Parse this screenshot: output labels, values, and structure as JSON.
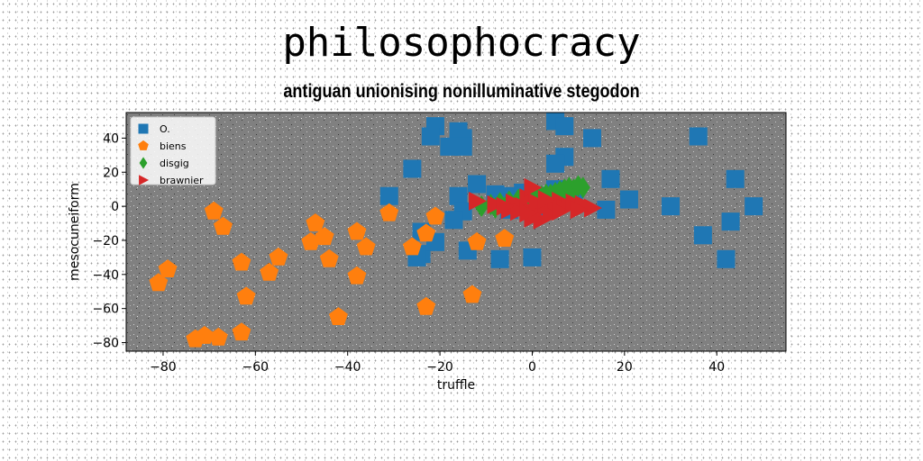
{
  "title": "philosophocracy",
  "subtitle": "antiguan unionising nonilluminative stegodon",
  "colors": {
    "plot_bg": "#808080",
    "O.": "#1f77b4",
    "biens": "#ff7f0e",
    "disgig": "#2ca02c",
    "brawnier": "#d62728"
  },
  "chart_data": {
    "type": "scatter",
    "xlabel": "truffle",
    "ylabel": "mesocuneiform",
    "xlim": [
      -88,
      55
    ],
    "ylim": [
      -85,
      55
    ],
    "xticks": [
      -80,
      -60,
      -40,
      -20,
      0,
      20,
      40
    ],
    "yticks": [
      -80,
      -60,
      -40,
      -20,
      0,
      20,
      40
    ],
    "xtick_labels": [
      "−80",
      "−60",
      "−40",
      "−20",
      "0",
      "20",
      "40"
    ],
    "ytick_labels": [
      "−80",
      "−60",
      "−40",
      "−20",
      "0",
      "20",
      "40"
    ],
    "grid": false,
    "legend_position": "top-left",
    "series": [
      {
        "name": "O.",
        "marker": "square",
        "points": [
          [
            -21,
            47
          ],
          [
            -22,
            41
          ],
          [
            -16,
            44
          ],
          [
            -15,
            40
          ],
          [
            -18,
            35
          ],
          [
            -15,
            35
          ],
          [
            -26,
            22
          ],
          [
            -31,
            6
          ],
          [
            -12,
            13
          ],
          [
            -16,
            6
          ],
          [
            -8,
            7
          ],
          [
            -5,
            6
          ],
          [
            -15,
            -3
          ],
          [
            -17,
            -8
          ],
          [
            -24,
            -15
          ],
          [
            -24,
            -28
          ],
          [
            -25,
            -30
          ],
          [
            -21,
            -21
          ],
          [
            -14,
            -26
          ],
          [
            -7,
            -31
          ],
          [
            0,
            -30
          ],
          [
            5,
            50
          ],
          [
            7,
            47
          ],
          [
            13,
            40
          ],
          [
            7,
            29
          ],
          [
            5,
            25
          ],
          [
            17,
            16
          ],
          [
            21,
            4
          ],
          [
            16,
            -2
          ],
          [
            30,
            0
          ],
          [
            36,
            41
          ],
          [
            44,
            16
          ],
          [
            48,
            0
          ],
          [
            43,
            -9
          ],
          [
            37,
            -17
          ],
          [
            42,
            -31
          ],
          [
            -2,
            8
          ],
          [
            1,
            6
          ],
          [
            5,
            10
          ],
          [
            9,
            8
          ],
          [
            -5,
            -2
          ],
          [
            2,
            -3
          ]
        ]
      },
      {
        "name": "biens",
        "marker": "pentagon",
        "points": [
          [
            -69,
            -3
          ],
          [
            -67,
            -12
          ],
          [
            -79,
            -37
          ],
          [
            -81,
            -45
          ],
          [
            -63,
            -33
          ],
          [
            -62,
            -53
          ],
          [
            -55,
            -30
          ],
          [
            -57,
            -39
          ],
          [
            -63,
            -74
          ],
          [
            -68,
            -77
          ],
          [
            -71,
            -76
          ],
          [
            -73,
            -78
          ],
          [
            -47,
            -10
          ],
          [
            -45,
            -18
          ],
          [
            -48,
            -21
          ],
          [
            -44,
            -31
          ],
          [
            -42,
            -65
          ],
          [
            -38,
            -15
          ],
          [
            -36,
            -24
          ],
          [
            -38,
            -41
          ],
          [
            -31,
            -4
          ],
          [
            -21,
            -6
          ],
          [
            -23,
            -16
          ],
          [
            -26,
            -24
          ],
          [
            -12,
            -21
          ],
          [
            -6,
            -19
          ],
          [
            -13,
            -52
          ],
          [
            -23,
            -59
          ]
        ]
      },
      {
        "name": "disgig",
        "marker": "diamond",
        "points": [
          [
            -11,
            0
          ],
          [
            -9,
            1
          ],
          [
            -7,
            2
          ],
          [
            -8,
            -1
          ],
          [
            -5,
            3
          ],
          [
            -3,
            4
          ],
          [
            -1,
            3
          ],
          [
            1,
            5
          ],
          [
            2,
            6
          ],
          [
            3,
            7
          ],
          [
            4,
            7
          ],
          [
            5,
            8
          ],
          [
            6,
            9
          ],
          [
            7,
            10
          ],
          [
            8,
            11
          ],
          [
            9,
            10
          ],
          [
            10,
            12
          ],
          [
            11,
            11
          ],
          [
            0,
            4
          ],
          [
            -2,
            2
          ],
          [
            4,
            5
          ],
          [
            6,
            6
          ],
          [
            2,
            3
          ]
        ]
      },
      {
        "name": "brawnier",
        "marker": "triangle-right",
        "points": [
          [
            -12,
            3
          ],
          [
            -8,
            1
          ],
          [
            -5,
            -2
          ],
          [
            -4,
            2
          ],
          [
            -2,
            0
          ],
          [
            -1,
            5
          ],
          [
            0,
            11
          ],
          [
            1,
            -3
          ],
          [
            2,
            -1
          ],
          [
            3,
            0
          ],
          [
            4,
            1
          ],
          [
            5,
            -2
          ],
          [
            6,
            3
          ],
          [
            7,
            -1
          ],
          [
            8,
            0
          ],
          [
            9,
            2
          ],
          [
            11,
            1
          ],
          [
            13,
            -1
          ],
          [
            2,
            -8
          ],
          [
            0,
            -7
          ],
          [
            -3,
            -3
          ],
          [
            -6,
            0
          ],
          [
            4,
            -5
          ],
          [
            6,
            -3
          ],
          [
            10,
            -2
          ],
          [
            1,
            2
          ],
          [
            3,
            4
          ],
          [
            -1,
            -4
          ]
        ]
      }
    ]
  }
}
